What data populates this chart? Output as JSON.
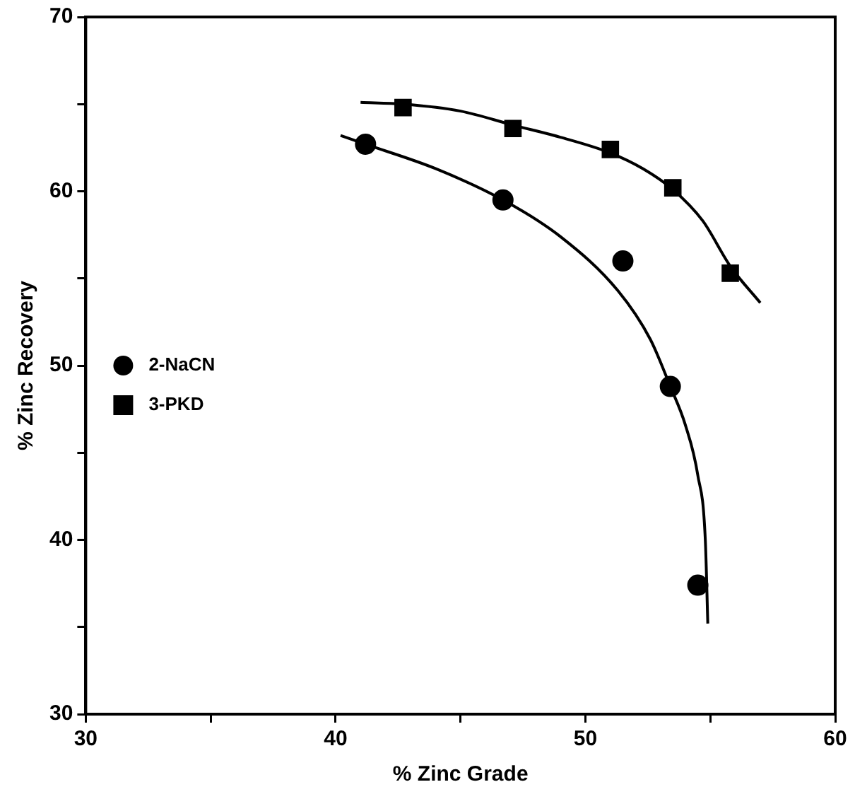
{
  "chart_data": {
    "type": "scatter",
    "xlabel": "% Zinc Grade",
    "ylabel": "% Zinc Recovery",
    "xlim": [
      30,
      60
    ],
    "xticks": [
      30,
      {
        "value": 35,
        "label": null
      },
      40,
      {
        "value": 45,
        "label": null
      },
      50,
      {
        "value": 55,
        "label": null
      },
      60
    ],
    "ylim": [
      30,
      70
    ],
    "yticks": [
      30,
      {
        "value": 35,
        "label": null
      },
      40,
      {
        "value": 45,
        "label": null
      },
      50,
      {
        "value": 55,
        "label": null
      },
      60,
      {
        "value": 65,
        "label": null
      },
      70
    ],
    "grid": false,
    "legend": "left",
    "series": [
      {
        "name": "2-NaCN",
        "type": "scatter",
        "marker": "circle",
        "color": "#000000",
        "x": [
          41.2,
          46.7,
          51.5,
          53.4,
          54.5
        ],
        "values": [
          62.7,
          59.5,
          56.0,
          48.8,
          37.4
        ]
      },
      {
        "name": "3-PKD",
        "type": "scatter",
        "marker": "square",
        "color": "#000000",
        "x": [
          42.7,
          47.1,
          51.0,
          53.5,
          55.8
        ],
        "values": [
          64.8,
          63.6,
          62.4,
          60.2,
          55.3
        ]
      },
      {
        "type": "line",
        "marker": "none",
        "color": "#000000",
        "x": [
          40.2,
          41.2,
          44,
          46.7,
          49,
          51.3,
          52.6,
          53.4,
          54.0,
          54.5,
          54.8,
          54.9
        ],
        "values": [
          63.2,
          62.7,
          61.3,
          59.5,
          57.4,
          54.3,
          51.5,
          48.8,
          46.6,
          43.7,
          40,
          35.2
        ]
      },
      {
        "type": "line",
        "marker": "none",
        "color": "#000000",
        "x": [
          41.0,
          42.7,
          45,
          47.1,
          49,
          51,
          52.3,
          53.5,
          54.7,
          55.8,
          57.0
        ],
        "values": [
          65.1,
          65.0,
          64.6,
          63.8,
          63.1,
          62.2,
          61.3,
          60.1,
          58.3,
          55.7,
          53.6
        ]
      }
    ]
  }
}
